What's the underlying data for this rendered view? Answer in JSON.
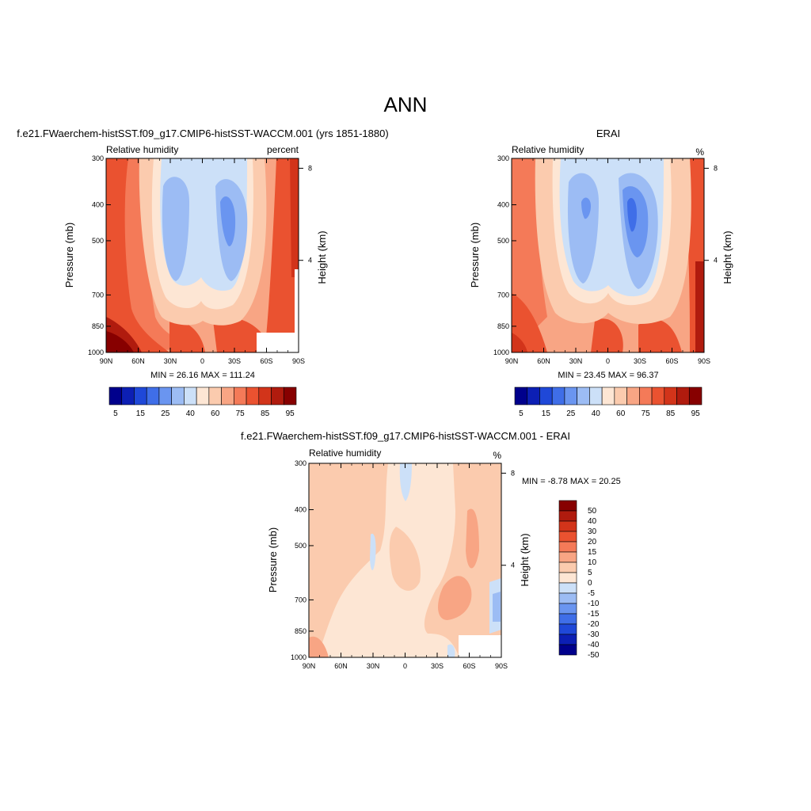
{
  "page_title": "ANN",
  "chart_data": [
    {
      "type": "heatmap",
      "id": "p1",
      "header": "f.e21.FWaerchem-histSST.f09_g17.CMIP6-histSST-WACCM.001 (yrs 1851-1880)",
      "title_left": "Relative humidity",
      "title_right": "percent",
      "ylabel": "Pressure (mb)",
      "ylabel_right": "Height (km)",
      "x_ticks": [
        "90N",
        "60N",
        "30N",
        "0",
        "30S",
        "60S",
        "90S"
      ],
      "y_ticks": [
        "300",
        "400",
        "500",
        "700",
        "850",
        "1000"
      ],
      "height_ticks": [
        "8",
        "4"
      ],
      "stats": "MIN =  26.16  MAX = 111.24",
      "colorbar_labels": [
        "5",
        "15",
        "25",
        "40",
        "60",
        "75",
        "85",
        "95"
      ],
      "colorbar_colors": [
        "#00008c",
        "#0c1fb4",
        "#1f48d8",
        "#3f6ee8",
        "#6a95f0",
        "#9cbcf4",
        "#cce0f8",
        "#fde6d4",
        "#fbcbae",
        "#f8a584",
        "#f47a58",
        "#ea5230",
        "#d2341a",
        "#b01b0e",
        "#870000"
      ],
      "min": 26.16,
      "max": 111.24
    },
    {
      "type": "heatmap",
      "id": "p2",
      "header": "ERAI",
      "title_left": "Relative humidity",
      "title_right": "%",
      "ylabel": "Pressure (mb)",
      "ylabel_right": "Height (km)",
      "x_ticks": [
        "90N",
        "60N",
        "30N",
        "0",
        "30S",
        "60S",
        "90S"
      ],
      "y_ticks": [
        "300",
        "400",
        "500",
        "700",
        "850",
        "1000"
      ],
      "height_ticks": [
        "8",
        "4"
      ],
      "stats": "MIN =  23.45  MAX =  96.37",
      "colorbar_labels": [
        "5",
        "15",
        "25",
        "40",
        "60",
        "75",
        "85",
        "95"
      ],
      "colorbar_colors": [
        "#00008c",
        "#0c1fb4",
        "#1f48d8",
        "#3f6ee8",
        "#6a95f0",
        "#9cbcf4",
        "#cce0f8",
        "#fde6d4",
        "#fbcbae",
        "#f8a584",
        "#f47a58",
        "#ea5230",
        "#d2341a",
        "#b01b0e",
        "#870000"
      ],
      "min": 23.45,
      "max": 96.37
    },
    {
      "type": "heatmap",
      "id": "p3",
      "header": "f.e21.FWaerchem-histSST.f09_g17.CMIP6-histSST-WACCM.001 - ERAI",
      "title_left": "Relative humidity",
      "title_right": "%",
      "ylabel": "Pressure (mb)",
      "ylabel_right": "Height (km)",
      "x_ticks": [
        "90N",
        "60N",
        "30N",
        "0",
        "30S",
        "60S",
        "90S"
      ],
      "y_ticks": [
        "300",
        "400",
        "500",
        "700",
        "850",
        "1000"
      ],
      "height_ticks": [
        "8",
        "4"
      ],
      "stats": "MIN =  -8.78  MAX =  20.25",
      "colorbar_labels": [
        "50",
        "40",
        "30",
        "20",
        "15",
        "10",
        "5",
        "0",
        "-5",
        "-10",
        "-15",
        "-20",
        "-30",
        "-40",
        "-50"
      ],
      "colorbar_colors": [
        "#870000",
        "#b01b0e",
        "#d2341a",
        "#ea5230",
        "#f47a58",
        "#f8a584",
        "#fbcbae",
        "#fde6d4",
        "#cce0f8",
        "#9cbcf4",
        "#6a95f0",
        "#3f6ee8",
        "#1f48d8",
        "#0c1fb4",
        "#00008c"
      ],
      "min": -8.78,
      "max": 20.25
    }
  ]
}
